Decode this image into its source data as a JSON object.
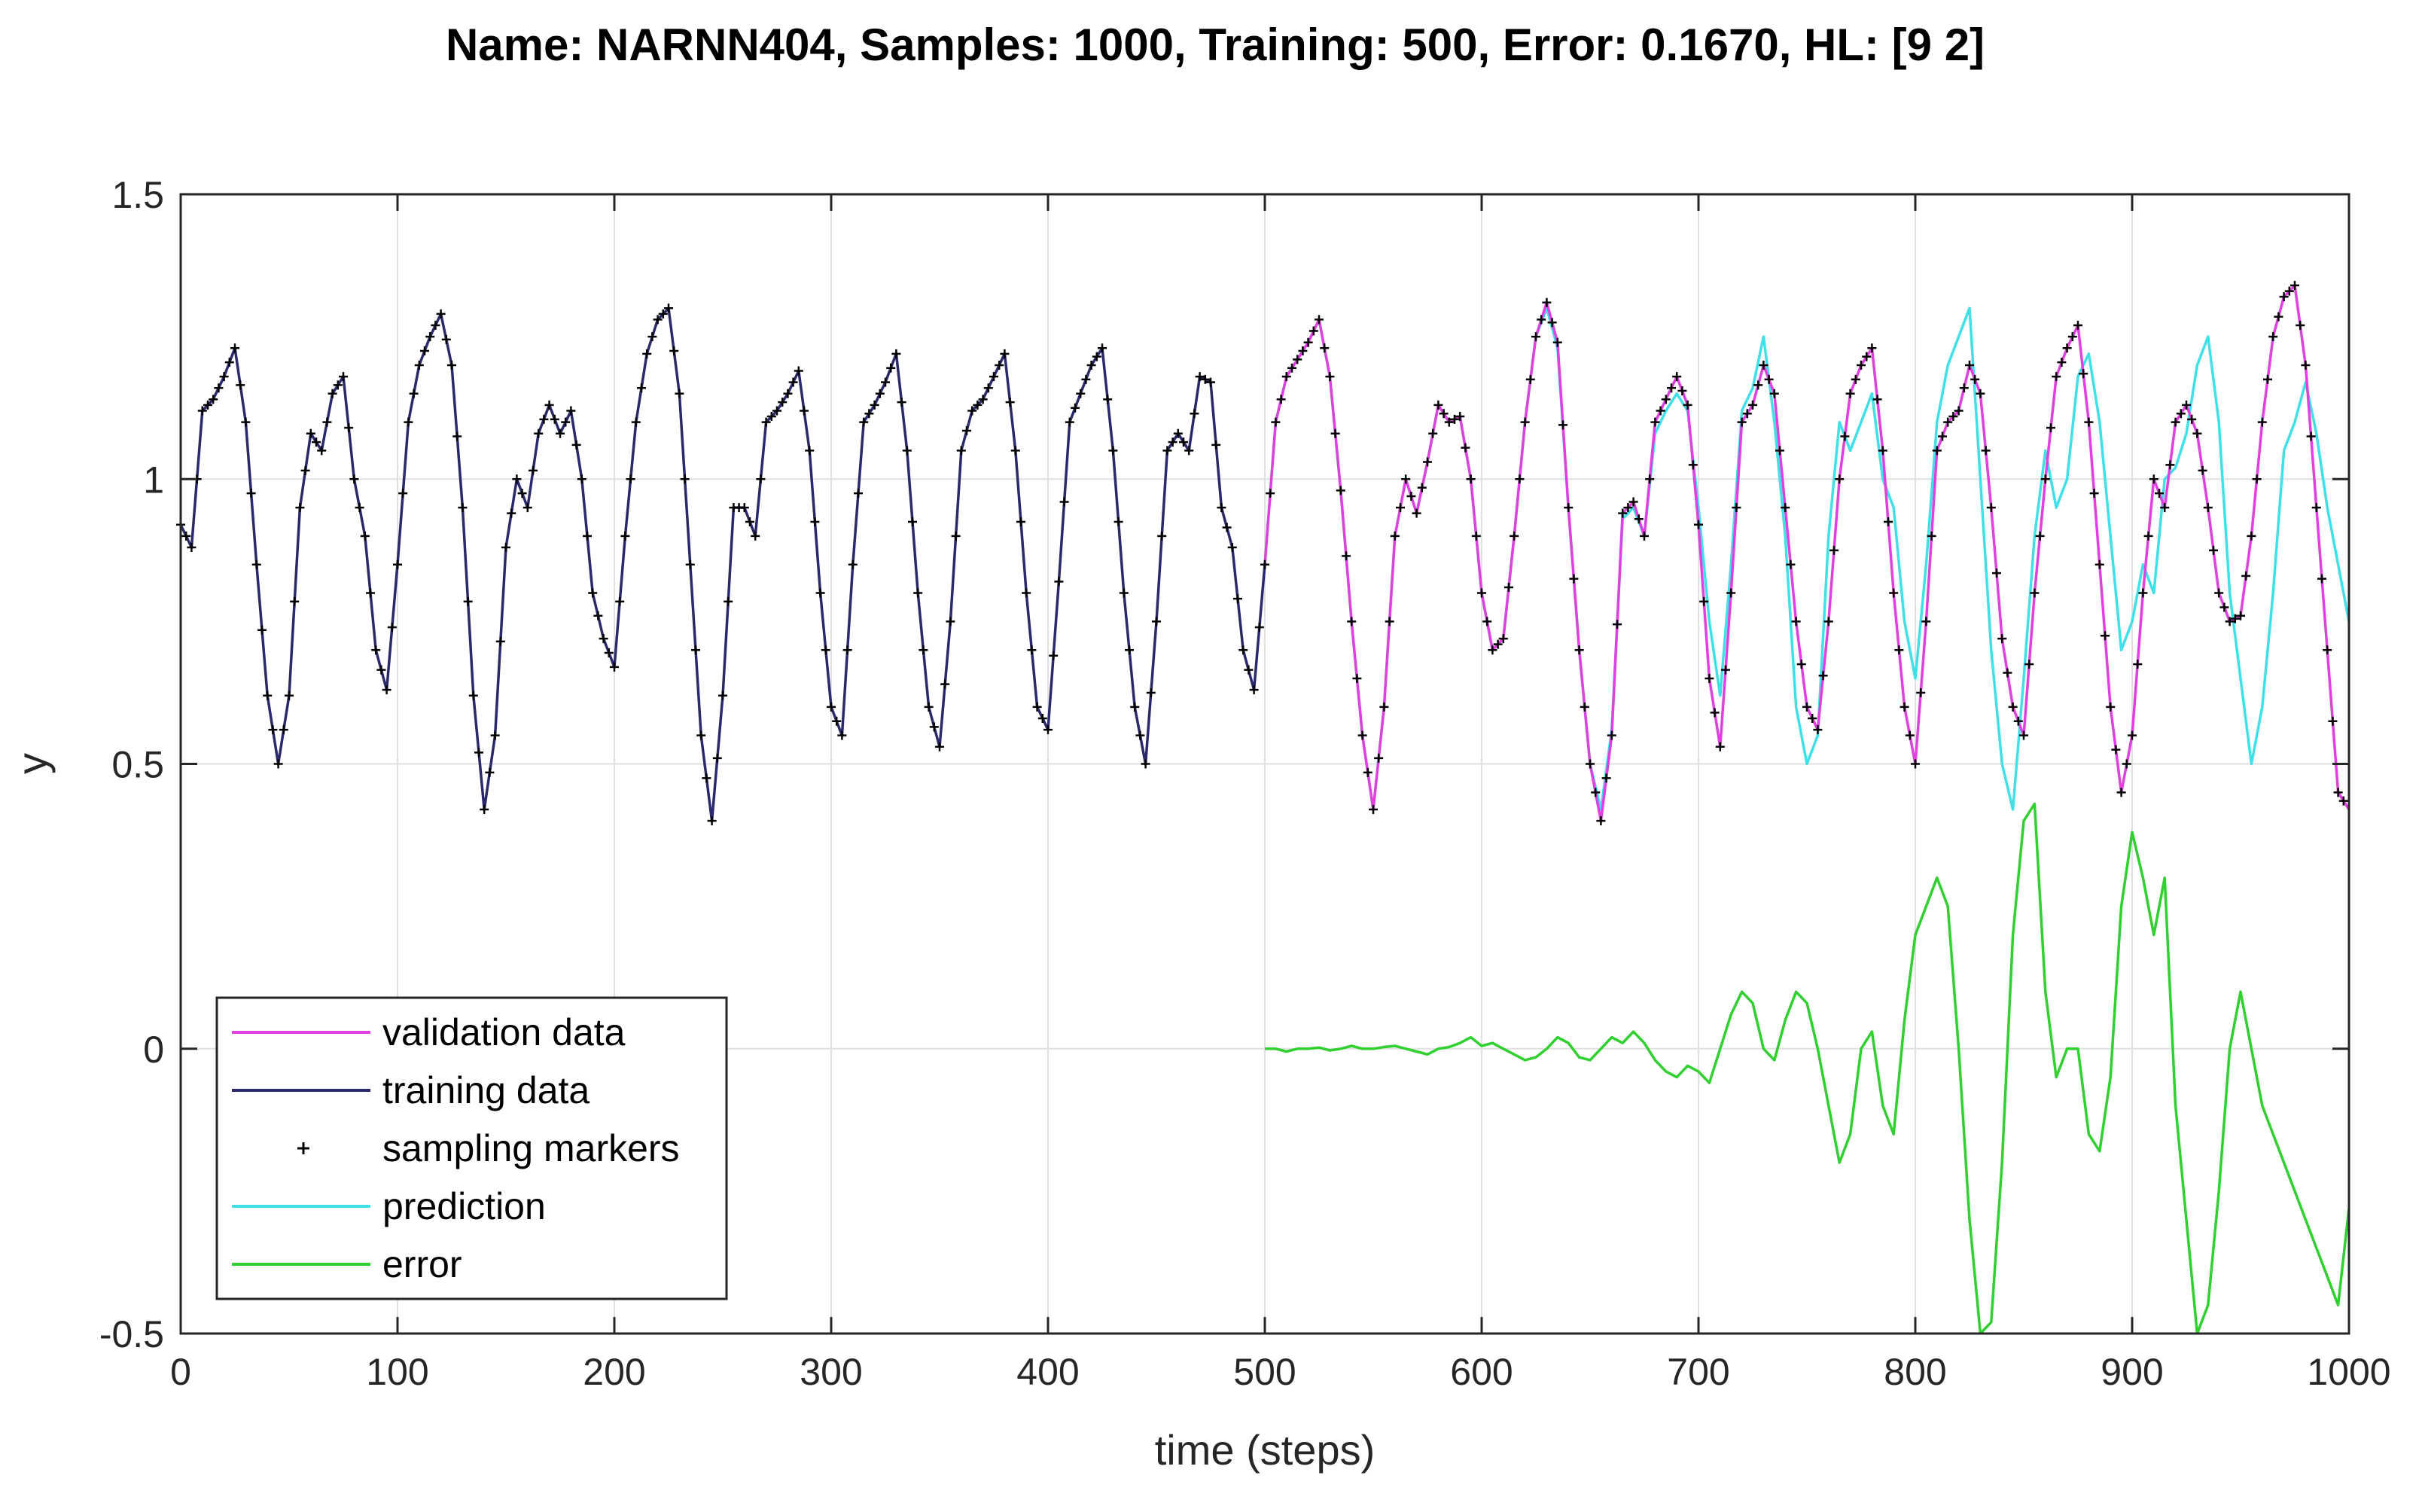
{
  "chart_data": {
    "type": "line",
    "title": "Name: NARNN404, Samples: 1000, Training: 500, Error: 0.1670, HL: [9 2]",
    "xlabel": "time (steps)",
    "ylabel": "y",
    "xlim": [
      0,
      1000
    ],
    "ylim": [
      -0.5,
      1.5
    ],
    "xticks": [
      0,
      100,
      200,
      300,
      400,
      500,
      600,
      700,
      800,
      900,
      1000
    ],
    "yticks": [
      -0.5,
      0,
      0.5,
      1,
      1.5
    ],
    "xtick_labels": [
      "0",
      "100",
      "200",
      "300",
      "400",
      "500",
      "600",
      "700",
      "800",
      "900",
      "1000"
    ],
    "ytick_labels": [
      "-0.5",
      "0",
      "0.5",
      "1",
      "1.5"
    ],
    "grid": true,
    "legend_position": "bottom-left",
    "colors": {
      "validation": "#e040e0",
      "training": "#2a2a6a",
      "markers": "#000000",
      "prediction": "#40e0e8",
      "error": "#30d030"
    },
    "series": [
      {
        "name": "validation data",
        "key": "validation",
        "x": [
          500,
          505,
          510,
          515,
          520,
          525,
          530,
          535,
          540,
          545,
          550,
          555,
          560,
          565,
          570,
          575,
          580,
          585,
          590,
          595,
          600,
          605,
          610,
          615,
          620,
          625,
          630,
          635,
          640,
          645,
          650,
          655,
          660,
          665,
          670,
          675,
          680,
          685,
          690,
          695,
          700,
          705,
          710,
          715,
          720,
          725,
          730,
          735,
          740,
          745,
          750,
          755,
          760,
          765,
          770,
          775,
          780,
          785,
          790,
          795,
          800,
          805,
          810,
          815,
          820,
          825,
          830,
          835,
          840,
          845,
          850,
          855,
          860,
          865,
          870,
          875,
          880,
          885,
          890,
          895,
          900,
          905,
          910,
          915,
          920,
          925,
          930,
          935,
          940,
          945,
          950,
          955,
          960,
          965,
          970,
          975,
          980,
          985,
          990,
          995,
          1000
        ],
        "values": [
          0.85,
          1.1,
          1.18,
          1.21,
          1.24,
          1.28,
          1.18,
          0.98,
          0.75,
          0.55,
          0.42,
          0.6,
          0.9,
          1.0,
          0.94,
          1.03,
          1.13,
          1.1,
          1.11,
          1.0,
          0.8,
          0.7,
          0.72,
          0.9,
          1.1,
          1.25,
          1.31,
          1.24,
          0.95,
          0.7,
          0.5,
          0.4,
          0.55,
          0.94,
          0.96,
          0.9,
          1.1,
          1.14,
          1.18,
          1.13,
          0.92,
          0.65,
          0.53,
          0.8,
          1.1,
          1.13,
          1.2,
          1.15,
          0.95,
          0.75,
          0.6,
          0.56,
          0.75,
          1.0,
          1.15,
          1.2,
          1.23,
          1.05,
          0.8,
          0.6,
          0.5,
          0.75,
          1.05,
          1.1,
          1.12,
          1.2,
          1.15,
          0.95,
          0.72,
          0.6,
          0.55,
          0.8,
          1.0,
          1.18,
          1.23,
          1.27,
          1.1,
          0.85,
          0.6,
          0.45,
          0.55,
          0.8,
          1.0,
          0.95,
          1.1,
          1.13,
          1.08,
          0.95,
          0.8,
          0.75,
          0.76,
          0.9,
          1.1,
          1.25,
          1.32,
          1.34,
          1.2,
          0.95,
          0.7,
          0.45,
          0.42
        ]
      },
      {
        "name": "training data",
        "key": "training",
        "x": [
          0,
          5,
          10,
          15,
          20,
          25,
          30,
          35,
          40,
          45,
          50,
          55,
          60,
          65,
          70,
          75,
          80,
          85,
          90,
          95,
          100,
          105,
          110,
          115,
          120,
          125,
          130,
          135,
          140,
          145,
          150,
          155,
          160,
          165,
          170,
          175,
          180,
          185,
          190,
          195,
          200,
          205,
          210,
          215,
          220,
          225,
          230,
          235,
          240,
          245,
          250,
          255,
          260,
          265,
          270,
          275,
          280,
          285,
          290,
          295,
          300,
          305,
          310,
          315,
          320,
          325,
          330,
          335,
          340,
          345,
          350,
          355,
          360,
          365,
          370,
          375,
          380,
          385,
          390,
          395,
          400,
          405,
          410,
          415,
          420,
          425,
          430,
          435,
          440,
          445,
          450,
          455,
          460,
          465,
          470,
          475,
          480,
          485,
          490,
          495,
          500
        ],
        "values": [
          0.92,
          0.88,
          1.12,
          1.14,
          1.18,
          1.23,
          1.1,
          0.85,
          0.62,
          0.5,
          0.62,
          0.95,
          1.08,
          1.05,
          1.15,
          1.18,
          1.0,
          0.9,
          0.7,
          0.63,
          0.85,
          1.1,
          1.2,
          1.25,
          1.29,
          1.2,
          0.95,
          0.62,
          0.42,
          0.55,
          0.88,
          1.0,
          0.95,
          1.08,
          1.13,
          1.08,
          1.12,
          1.0,
          0.8,
          0.72,
          0.67,
          0.9,
          1.1,
          1.22,
          1.28,
          1.3,
          1.15,
          0.85,
          0.55,
          0.4,
          0.62,
          0.95,
          0.95,
          0.9,
          1.1,
          1.12,
          1.15,
          1.19,
          1.05,
          0.8,
          0.6,
          0.55,
          0.85,
          1.1,
          1.13,
          1.17,
          1.22,
          1.05,
          0.8,
          0.6,
          0.53,
          0.75,
          1.05,
          1.12,
          1.14,
          1.18,
          1.22,
          1.05,
          0.8,
          0.6,
          0.56,
          0.82,
          1.1,
          1.15,
          1.2,
          1.23,
          1.05,
          0.8,
          0.6,
          0.5,
          0.75,
          1.05,
          1.08,
          1.05,
          1.18,
          1.17,
          0.95,
          0.88,
          0.7,
          0.63,
          0.85
        ]
      },
      {
        "name": "sampling markers",
        "key": "markers",
        "source": "training+validation"
      },
      {
        "name": "prediction",
        "key": "prediction",
        "x": [
          500,
          505,
          510,
          515,
          520,
          525,
          530,
          535,
          540,
          545,
          550,
          555,
          560,
          565,
          570,
          575,
          580,
          585,
          590,
          595,
          600,
          605,
          610,
          615,
          620,
          625,
          630,
          635,
          640,
          645,
          650,
          655,
          660,
          665,
          670,
          675,
          680,
          685,
          690,
          695,
          700,
          705,
          710,
          715,
          720,
          725,
          730,
          735,
          740,
          745,
          750,
          755,
          760,
          765,
          770,
          775,
          780,
          785,
          790,
          795,
          800,
          805,
          810,
          815,
          820,
          825,
          830,
          835,
          840,
          845,
          850,
          855,
          860,
          865,
          870,
          875,
          880,
          885,
          890,
          895,
          900,
          905,
          910,
          915,
          920,
          925,
          930,
          935,
          940,
          945,
          950,
          955,
          960,
          965,
          970,
          975,
          980,
          985,
          990,
          995,
          1000
        ],
        "values": [
          0.85,
          1.1,
          1.18,
          1.21,
          1.24,
          1.28,
          1.18,
          0.98,
          0.75,
          0.55,
          0.42,
          0.6,
          0.9,
          1.0,
          0.94,
          1.03,
          1.13,
          1.1,
          1.11,
          1.0,
          0.8,
          0.7,
          0.72,
          0.9,
          1.1,
          1.25,
          1.3,
          1.23,
          0.95,
          0.7,
          0.5,
          0.42,
          0.56,
          0.93,
          0.95,
          0.9,
          1.08,
          1.12,
          1.15,
          1.12,
          0.95,
          0.75,
          0.62,
          0.85,
          1.12,
          1.16,
          1.25,
          1.1,
          0.9,
          0.6,
          0.5,
          0.55,
          0.9,
          1.1,
          1.05,
          1.1,
          1.15,
          1.0,
          0.95,
          0.75,
          0.65,
          0.85,
          1.1,
          1.2,
          1.25,
          1.3,
          1.0,
          0.7,
          0.5,
          0.42,
          0.65,
          0.9,
          1.05,
          0.95,
          1.0,
          1.18,
          1.22,
          1.1,
          0.9,
          0.7,
          0.75,
          0.85,
          0.8,
          1.0,
          1.02,
          1.08,
          1.2,
          1.25,
          1.1,
          0.8,
          0.65,
          0.5,
          0.6,
          0.8,
          1.05,
          1.1,
          1.17,
          1.08,
          0.95,
          0.85,
          0.75
        ]
      },
      {
        "name": "error",
        "key": "error",
        "x": [
          500,
          505,
          510,
          515,
          520,
          525,
          530,
          535,
          540,
          545,
          550,
          555,
          560,
          565,
          570,
          575,
          580,
          585,
          590,
          595,
          600,
          605,
          610,
          615,
          620,
          625,
          630,
          635,
          640,
          645,
          650,
          655,
          660,
          665,
          670,
          675,
          680,
          685,
          690,
          695,
          700,
          705,
          710,
          715,
          720,
          725,
          730,
          735,
          740,
          745,
          750,
          755,
          760,
          765,
          770,
          775,
          780,
          785,
          790,
          795,
          800,
          805,
          810,
          815,
          820,
          825,
          830,
          835,
          840,
          845,
          850,
          855,
          860,
          865,
          870,
          875,
          880,
          885,
          890,
          895,
          900,
          905,
          910,
          915,
          920,
          925,
          930,
          935,
          940,
          945,
          950,
          955,
          960,
          965,
          970,
          975,
          980,
          985,
          990,
          995,
          1000
        ],
        "values": [
          0.0,
          0.0,
          -0.005,
          0.0,
          0.0,
          0.002,
          -0.003,
          0.0,
          0.005,
          0.0,
          0.0,
          0.003,
          0.005,
          0.0,
          -0.005,
          -0.01,
          0.0,
          0.003,
          0.01,
          0.02,
          0.005,
          0.01,
          0.0,
          -0.01,
          -0.02,
          -0.015,
          0.0,
          0.02,
          0.01,
          -0.015,
          -0.02,
          0.0,
          0.02,
          0.01,
          0.03,
          0.01,
          -0.02,
          -0.04,
          -0.05,
          -0.03,
          -0.04,
          -0.06,
          0.0,
          0.06,
          0.1,
          0.08,
          0.0,
          -0.02,
          0.05,
          0.1,
          0.08,
          0.0,
          -0.1,
          -0.2,
          -0.15,
          0.0,
          0.03,
          -0.1,
          -0.15,
          0.05,
          0.2,
          0.25,
          0.3,
          0.25,
          0.0,
          -0.3,
          -0.5,
          -0.48,
          -0.2,
          0.2,
          0.4,
          0.43,
          0.1,
          -0.05,
          0.0,
          0.0,
          -0.15,
          -0.18,
          -0.05,
          0.25,
          0.38,
          0.3,
          0.2,
          0.3,
          -0.1,
          -0.3,
          -0.5,
          -0.45,
          -0.25,
          0.0,
          0.1,
          0.0,
          -0.1,
          -0.15,
          -0.2,
          -0.25,
          -0.3,
          -0.35,
          -0.4,
          -0.45,
          -0.28
        ]
      }
    ]
  }
}
